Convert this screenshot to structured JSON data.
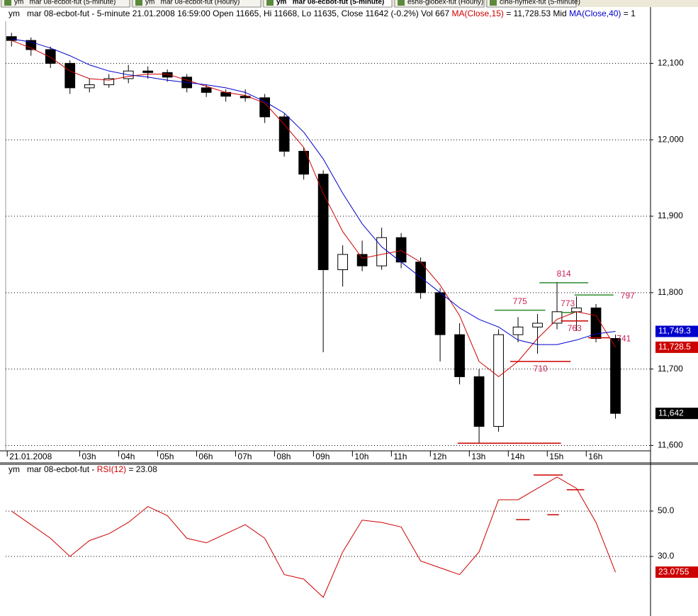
{
  "tabs": [
    "ym   mar 08-ecbot-fut (5-minute)",
    "ym   mar 08-ecbot-fut (Hourly)",
    "ym   mar 08-ecbot-fut (5-minute)",
    "esh8-globex-fut (Hourly)",
    "clh8-nymex-fut (5-minute)"
  ],
  "chart_data": [
    {
      "type": "candlestick",
      "title": [
        {
          "text": "ym   mar 08-ecbot-fut - 5-minute 21.01.2008 16:59:00 Open 11665, Hi 11668, Lo 11635, Close 11642 (-0.2%) Vol 667 ",
          "color": "#000000"
        },
        {
          "text": "MA(Close,15)",
          "color": "#cc0000"
        },
        {
          "text": " = 11,728.53 Mid ",
          "color": "#000000"
        },
        {
          "text": "MA(Close,40)",
          "color": "#0000cc"
        },
        {
          "text": " = 1",
          "color": "#000000"
        }
      ],
      "x": [
        1.25,
        1.75,
        2.25,
        2.75,
        3.25,
        3.75,
        4.25,
        4.75,
        5.25,
        5.75,
        6.25,
        6.75,
        7.25,
        7.75,
        8.25,
        8.75,
        9.25,
        9.75,
        10.25,
        10.75,
        11.25,
        11.75,
        12.25,
        12.75,
        13.25,
        13.75,
        14.25,
        14.75,
        15.25,
        15.75,
        16.25,
        16.75
      ],
      "open": [
        12135,
        12130,
        12118,
        12100,
        12068,
        12072,
        12080,
        12090,
        12088,
        12082,
        12068,
        12062,
        12057,
        12055,
        12030,
        11985,
        11955,
        11830,
        11850,
        11835,
        11872,
        11840,
        11800,
        11745,
        11690,
        11625,
        11745,
        11755,
        11760,
        11775,
        11780,
        11740
      ],
      "high": [
        12140,
        12134,
        12122,
        12104,
        12080,
        12086,
        12098,
        12096,
        12092,
        12086,
        12072,
        12066,
        12066,
        12060,
        12034,
        11990,
        11960,
        11862,
        11868,
        11885,
        11878,
        11846,
        11806,
        11760,
        11700,
        11752,
        11768,
        11772,
        11814,
        11795,
        11785,
        11745
      ],
      "low": [
        12122,
        12110,
        12094,
        12060,
        12062,
        12068,
        12074,
        12080,
        12076,
        12062,
        12056,
        12050,
        12050,
        12022,
        11978,
        11948,
        11722,
        11808,
        11828,
        11830,
        11832,
        11792,
        11710,
        11680,
        11603,
        11618,
        11735,
        11720,
        11752,
        11750,
        11735,
        11635
      ],
      "close": [
        12130,
        12118,
        12100,
        12068,
        12072,
        12080,
        12090,
        12088,
        12082,
        12068,
        12062,
        12057,
        12055,
        12030,
        11985,
        11955,
        11830,
        11850,
        11835,
        11872,
        11840,
        11800,
        11745,
        11690,
        11625,
        11745,
        11755,
        11760,
        11775,
        11780,
        11740,
        11642
      ],
      "close_label": "11,642",
      "series": [
        {
          "name": "MA(Close,15)",
          "color": "#cc0000",
          "last_label": "11,728.5",
          "values": [
            12130,
            12120,
            12108,
            12090,
            12080,
            12078,
            12083,
            12086,
            12086,
            12078,
            12070,
            12062,
            12058,
            12048,
            12020,
            11990,
            11930,
            11880,
            11845,
            11850,
            11855,
            11840,
            11810,
            11770,
            11710,
            11690,
            11710,
            11740,
            11765,
            11775,
            11770,
            11728.53
          ]
        },
        {
          "name": "MA(Close,40)",
          "color": "#0000cc",
          "last_label": "11,749.3",
          "values": [
            12132,
            12128,
            12120,
            12110,
            12098,
            12090,
            12085,
            12082,
            12078,
            12075,
            12072,
            12068,
            12062,
            12050,
            12035,
            12010,
            11975,
            11930,
            11890,
            11860,
            11840,
            11820,
            11800,
            11780,
            11765,
            11755,
            11738,
            11732,
            11732,
            11738,
            11746,
            11749.3
          ]
        }
      ],
      "levels": [
        {
          "label": "814",
          "value": 11813,
          "x": [
            14.8,
            16.05
          ],
          "color": "#2e8b2e"
        },
        {
          "label": "775",
          "value": 11777,
          "x": [
            13.65,
            14.95
          ],
          "color": "#2e8b2e"
        },
        {
          "label": "773",
          "value": 11774,
          "x": [
            15.35,
            15.7
          ],
          "color": "#2e8b2e"
        },
        {
          "label": "797",
          "value": 11797,
          "x": [
            15.7,
            16.7
          ],
          "color": "#2e8b2e"
        },
        {
          "label": "763",
          "value": 11763,
          "x": [
            15.35,
            16.05
          ],
          "color": "#cc0000"
        },
        {
          "label": "741",
          "value": 11741,
          "x": [
            16.05,
            16.6
          ],
          "color": "#cc0000"
        },
        {
          "label": "710",
          "value": 11710,
          "x": [
            14.05,
            15.6
          ],
          "color": "#cc0000"
        },
        {
          "value": 11603,
          "x": [
            12.7,
            15.35
          ],
          "color": "#cc0000"
        }
      ],
      "xlim": [
        1.1,
        17.65
      ],
      "xticks": [
        {
          "value": 1.14,
          "label": "21.01.2008"
        },
        {
          "value": 3,
          "label": "03h"
        },
        {
          "value": 4,
          "label": "04h"
        },
        {
          "value": 5,
          "label": "05h"
        },
        {
          "value": 6,
          "label": "06h"
        },
        {
          "value": 7,
          "label": "07h"
        },
        {
          "value": 8,
          "label": "08h"
        },
        {
          "value": 9,
          "label": "09h"
        },
        {
          "value": 10,
          "label": "10h"
        },
        {
          "value": 11,
          "label": "11h"
        },
        {
          "value": 12,
          "label": "12h"
        },
        {
          "value": 13,
          "label": "13h"
        },
        {
          "value": 14,
          "label": "14h"
        },
        {
          "value": 15,
          "label": "15h"
        },
        {
          "value": 16,
          "label": "16h"
        }
      ],
      "ylim": [
        11593,
        12169
      ],
      "yticks": [
        {
          "value": 11600,
          "label": "11,600"
        },
        {
          "value": 11700,
          "label": "11,700"
        },
        {
          "value": 11800,
          "label": "11,800"
        },
        {
          "value": 11900,
          "label": "11,900"
        },
        {
          "value": 12000,
          "label": "12,000"
        },
        {
          "value": 12100,
          "label": "12,100"
        }
      ],
      "grid": true
    },
    {
      "type": "line",
      "title": [
        {
          "text": "ym   mar 08-ecbot-fut - ",
          "color": "#000000"
        },
        {
          "text": "RSI(12)",
          "color": "#cc0000"
        },
        {
          "text": " = 23.08",
          "color": "#000000"
        }
      ],
      "x": [
        1.25,
        1.75,
        2.25,
        2.75,
        3.25,
        3.75,
        4.25,
        4.75,
        5.25,
        5.75,
        6.25,
        6.75,
        7.25,
        7.75,
        8.25,
        8.75,
        9.25,
        9.75,
        10.25,
        10.75,
        11.25,
        11.75,
        12.25,
        12.75,
        13.25,
        13.75,
        14.25,
        14.75,
        15.25,
        15.75,
        16.25,
        16.75
      ],
      "series": [
        {
          "name": "RSI(12)",
          "color": "#cc0000",
          "values": [
            50,
            44,
            38,
            30,
            37,
            40,
            45,
            52,
            48,
            38,
            36,
            40,
            44,
            38,
            22,
            20,
            12,
            32,
            46,
            45,
            43,
            28,
            25,
            22,
            32,
            55,
            55,
            60,
            65,
            60,
            45,
            23.0755
          ]
        }
      ],
      "levels": [
        {
          "value": 46.25,
          "x": [
            14.2,
            14.55
          ],
          "color": "#cc0000"
        },
        {
          "value": 65.9,
          "x": [
            14.65,
            15.4
          ],
          "color": "#cc0000"
        },
        {
          "value": 48.4,
          "x": [
            15.0,
            15.3
          ],
          "color": "#cc0000"
        },
        {
          "value": 59.4,
          "x": [
            15.5,
            15.95
          ],
          "color": "#cc0000"
        }
      ],
      "xlim": [
        1.1,
        17.65
      ],
      "ylim": [
        3.75,
        70.3
      ],
      "yticks": [
        {
          "value": 30,
          "label": "30.0"
        },
        {
          "value": 50,
          "label": "50.0"
        }
      ],
      "grid": true
    }
  ]
}
